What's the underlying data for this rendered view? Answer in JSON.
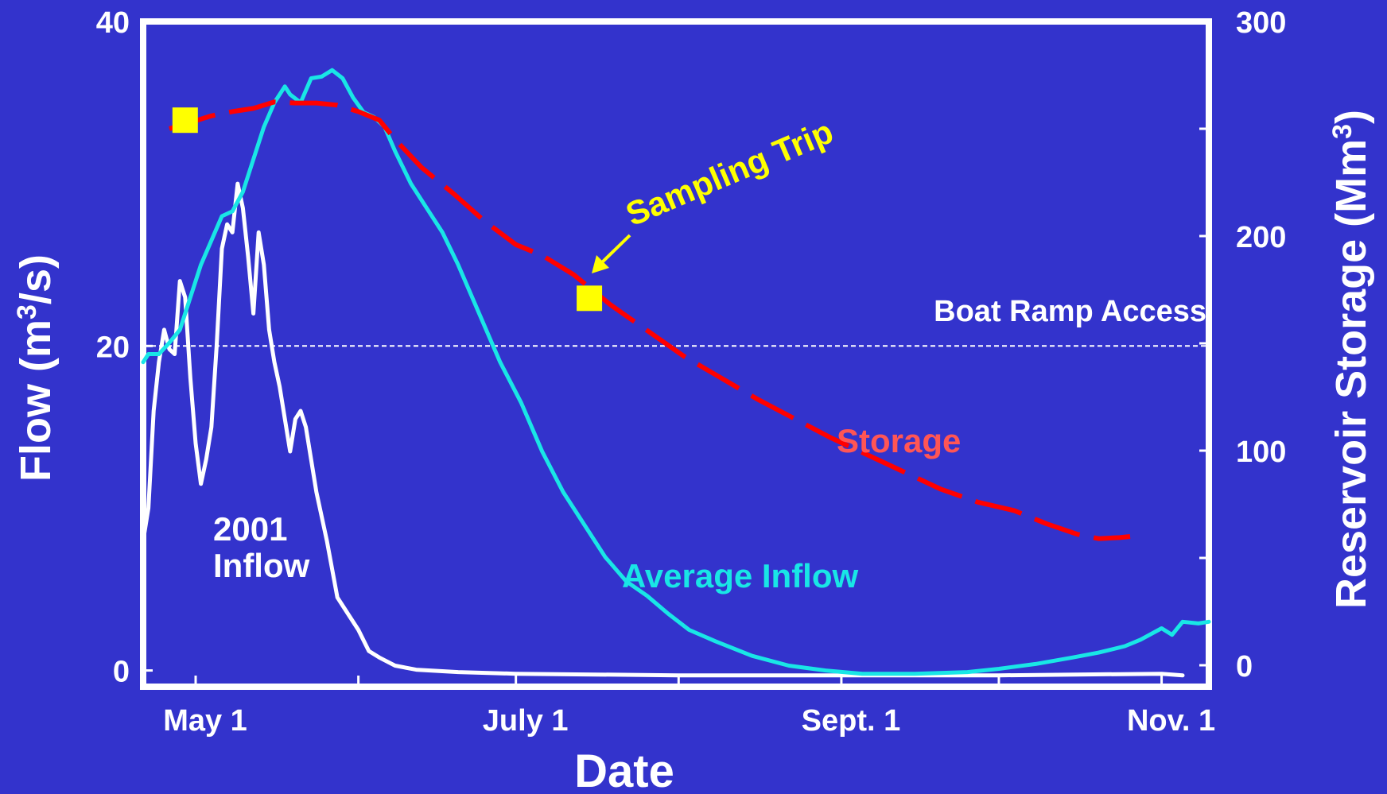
{
  "chart_data": {
    "type": "line",
    "xlabel": "Date",
    "ylabel_left_text": "Flow (m",
    "ylabel_left_sup": "3",
    "ylabel_left_end": "/s)",
    "ylabel_right_text": "Reservoir Storage (Mm",
    "ylabel_right_sup": "3",
    "ylabel_right_end": ")",
    "xlim": [
      "2001-04-21",
      "2001-11-10"
    ],
    "ylim_left": [
      -1,
      40
    ],
    "ylim_right": [
      -10,
      300
    ],
    "x_ticks": [
      {
        "date": "2001-05-01",
        "label": "May 1"
      },
      {
        "date": "2001-06-01",
        "label": ""
      },
      {
        "date": "2001-07-01",
        "label": "July 1"
      },
      {
        "date": "2001-08-01",
        "label": ""
      },
      {
        "date": "2001-09-01",
        "label": "Sept. 1"
      },
      {
        "date": "2001-10-01",
        "label": ""
      },
      {
        "date": "2001-11-01",
        "label": "Nov. 1"
      }
    ],
    "y_ticks_left": [
      {
        "value": 0,
        "label": "0"
      },
      {
        "value": 20,
        "label": "20"
      },
      {
        "value": 40,
        "label": "40"
      }
    ],
    "y_ticks_right": [
      {
        "value": 0,
        "label": "0"
      },
      {
        "value": 50,
        "label": ""
      },
      {
        "value": 100,
        "label": "100"
      },
      {
        "value": 150,
        "label": ""
      },
      {
        "value": 200,
        "label": "200"
      },
      {
        "value": 250,
        "label": ""
      },
      {
        "value": 300,
        "label": "300"
      }
    ],
    "reference_line": {
      "value": 20,
      "axis": "left",
      "label": "Boat Ramp Access",
      "color": "#ffffff",
      "style": "dashed"
    },
    "series": [
      {
        "name": "2001 Inflow",
        "color": "#ffffff",
        "axis": "left",
        "points": [
          [
            "2001-04-21",
            8
          ],
          [
            "2001-04-22",
            10
          ],
          [
            "2001-04-23",
            16
          ],
          [
            "2001-04-24",
            19
          ],
          [
            "2001-04-25",
            21
          ],
          [
            "2001-04-26",
            19.8
          ],
          [
            "2001-04-27",
            19.5
          ],
          [
            "2001-04-28",
            24
          ],
          [
            "2001-04-29",
            23
          ],
          [
            "2001-04-30",
            18
          ],
          [
            "2001-05-01",
            14
          ],
          [
            "2001-05-02",
            11.5
          ],
          [
            "2001-05-03",
            13
          ],
          [
            "2001-05-04",
            15
          ],
          [
            "2001-05-05",
            20
          ],
          [
            "2001-05-06",
            26
          ],
          [
            "2001-05-07",
            27.5
          ],
          [
            "2001-05-08",
            27
          ],
          [
            "2001-05-09",
            30
          ],
          [
            "2001-05-10",
            28.5
          ],
          [
            "2001-05-11",
            25.5
          ],
          [
            "2001-05-12",
            22
          ],
          [
            "2001-05-13",
            27
          ],
          [
            "2001-05-14",
            25
          ],
          [
            "2001-05-15",
            21
          ],
          [
            "2001-05-16",
            19
          ],
          [
            "2001-05-17",
            17.5
          ],
          [
            "2001-05-18",
            15.5
          ],
          [
            "2001-05-19",
            13.5
          ],
          [
            "2001-05-20",
            15.5
          ],
          [
            "2001-05-21",
            16
          ],
          [
            "2001-05-22",
            15
          ],
          [
            "2001-05-23",
            13
          ],
          [
            "2001-05-24",
            11
          ],
          [
            "2001-05-25",
            9.5
          ],
          [
            "2001-05-26",
            8
          ],
          [
            "2001-05-28",
            4.5
          ],
          [
            "2001-05-30",
            3.5
          ],
          [
            "2001-06-01",
            2.5
          ],
          [
            "2001-06-03",
            1.2
          ],
          [
            "2001-06-05",
            0.8
          ],
          [
            "2001-06-08",
            0.3
          ],
          [
            "2001-06-12",
            0.05
          ],
          [
            "2001-06-20",
            -0.1
          ],
          [
            "2001-07-01",
            -0.2
          ],
          [
            "2001-08-01",
            -0.3
          ],
          [
            "2001-09-01",
            -0.3
          ],
          [
            "2001-10-01",
            -0.3
          ],
          [
            "2001-11-01",
            -0.2
          ],
          [
            "2001-11-05",
            -0.3
          ]
        ]
      },
      {
        "name": "Average Inflow",
        "color": "#19e6e6",
        "axis": "left",
        "points": [
          [
            "2001-04-21",
            19
          ],
          [
            "2001-04-22",
            19.5
          ],
          [
            "2001-04-24",
            19.5
          ],
          [
            "2001-04-26",
            20.2
          ],
          [
            "2001-04-28",
            21
          ],
          [
            "2001-04-30",
            23
          ],
          [
            "2001-05-02",
            25
          ],
          [
            "2001-05-04",
            26.5
          ],
          [
            "2001-05-06",
            28
          ],
          [
            "2001-05-08",
            28.3
          ],
          [
            "2001-05-10",
            29.5
          ],
          [
            "2001-05-12",
            31.5
          ],
          [
            "2001-05-14",
            33.5
          ],
          [
            "2001-05-16",
            35
          ],
          [
            "2001-05-18",
            36
          ],
          [
            "2001-05-19",
            35.5
          ],
          [
            "2001-05-21",
            35
          ],
          [
            "2001-05-23",
            36.5
          ],
          [
            "2001-05-25",
            36.6
          ],
          [
            "2001-05-27",
            37
          ],
          [
            "2001-05-29",
            36.5
          ],
          [
            "2001-05-31",
            35.3
          ],
          [
            "2001-06-02",
            34.4
          ],
          [
            "2001-06-04",
            34.1
          ],
          [
            "2001-06-06",
            33.5
          ],
          [
            "2001-06-08",
            32
          ],
          [
            "2001-06-11",
            30
          ],
          [
            "2001-06-14",
            28.5
          ],
          [
            "2001-06-17",
            27
          ],
          [
            "2001-06-20",
            25
          ],
          [
            "2001-06-24",
            22
          ],
          [
            "2001-06-28",
            19
          ],
          [
            "2001-07-02",
            16.5
          ],
          [
            "2001-07-06",
            13.5
          ],
          [
            "2001-07-10",
            11
          ],
          [
            "2001-07-14",
            9
          ],
          [
            "2001-07-18",
            7
          ],
          [
            "2001-07-22",
            5.5
          ],
          [
            "2001-07-26",
            4.6
          ],
          [
            "2001-07-30",
            3.5
          ],
          [
            "2001-08-03",
            2.5
          ],
          [
            "2001-08-08",
            1.8
          ],
          [
            "2001-08-15",
            0.9
          ],
          [
            "2001-08-22",
            0.3
          ],
          [
            "2001-08-29",
            0
          ],
          [
            "2001-09-05",
            -0.2
          ],
          [
            "2001-09-15",
            -0.2
          ],
          [
            "2001-09-25",
            -0.1
          ],
          [
            "2001-10-01",
            0.1
          ],
          [
            "2001-10-08",
            0.4
          ],
          [
            "2001-10-15",
            0.8
          ],
          [
            "2001-10-20",
            1.1
          ],
          [
            "2001-10-25",
            1.5
          ],
          [
            "2001-10-28",
            1.9
          ],
          [
            "2001-11-01",
            2.6
          ],
          [
            "2001-11-03",
            2.2
          ],
          [
            "2001-11-05",
            3.0
          ],
          [
            "2001-11-08",
            2.9
          ],
          [
            "2001-11-10",
            3.0
          ]
        ]
      },
      {
        "name": "Storage",
        "color": "#ff0000",
        "axis": "right",
        "points": [
          [
            "2001-04-26",
            250
          ],
          [
            "2001-04-30",
            253
          ],
          [
            "2001-05-04",
            256
          ],
          [
            "2001-05-08",
            258
          ],
          [
            "2001-05-12",
            259.5
          ],
          [
            "2001-05-16",
            262.5
          ],
          [
            "2001-05-20",
            262
          ],
          [
            "2001-05-24",
            262
          ],
          [
            "2001-05-28",
            261
          ],
          [
            "2001-06-01",
            258
          ],
          [
            "2001-06-05",
            254
          ],
          [
            "2001-06-08",
            245
          ],
          [
            "2001-06-13",
            232
          ],
          [
            "2001-06-19",
            220
          ],
          [
            "2001-06-25",
            207
          ],
          [
            "2001-07-01",
            196
          ],
          [
            "2001-07-06",
            191
          ],
          [
            "2001-07-12",
            182
          ],
          [
            "2001-07-19",
            168
          ],
          [
            "2001-07-26",
            156
          ],
          [
            "2001-08-02",
            144
          ],
          [
            "2001-08-09",
            134
          ],
          [
            "2001-08-16",
            124
          ],
          [
            "2001-08-23",
            115
          ],
          [
            "2001-08-30",
            106
          ],
          [
            "2001-09-06",
            98
          ],
          [
            "2001-09-13",
            90
          ],
          [
            "2001-09-20",
            82
          ],
          [
            "2001-09-27",
            76
          ],
          [
            "2001-10-04",
            72
          ],
          [
            "2001-10-10",
            66
          ],
          [
            "2001-10-16",
            61
          ],
          [
            "2001-10-20",
            59
          ],
          [
            "2001-10-24",
            59.5
          ],
          [
            "2001-10-26",
            60
          ]
        ]
      }
    ],
    "sampling_trips": [
      {
        "date": "2001-04-29",
        "value": 254,
        "axis": "right"
      },
      {
        "date": "2001-07-15",
        "value": 171,
        "axis": "right"
      }
    ],
    "annotations": {
      "inflow_2001_line1": "2001",
      "inflow_2001_line2": "Inflow",
      "average_inflow": "Average Inflow",
      "storage": "Storage",
      "sampling_trip": "Sampling Trip",
      "boat_ramp": "Boat Ramp Access"
    },
    "colors": {
      "background": "#3333cc",
      "axes": "#ffffff",
      "sampling_marker": "#ffff00",
      "storage_label": "#ff5555",
      "sampling_label": "#ffff00"
    },
    "grid": false
  }
}
